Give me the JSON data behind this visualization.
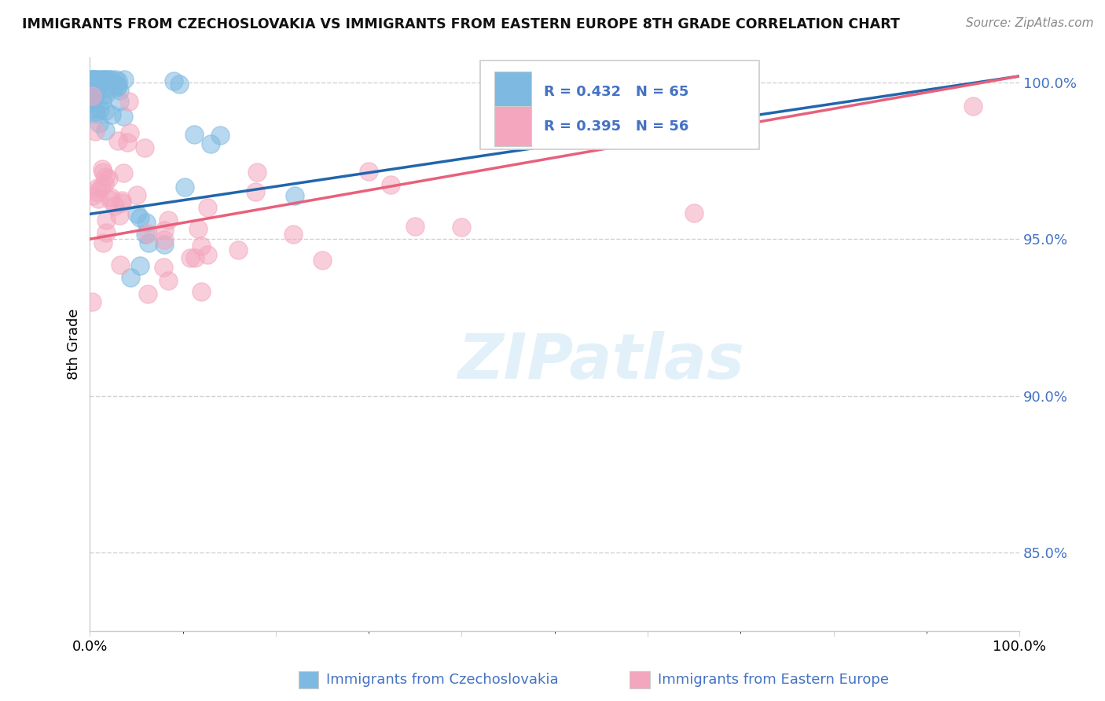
{
  "title": "IMMIGRANTS FROM CZECHOSLOVAKIA VS IMMIGRANTS FROM EASTERN EUROPE 8TH GRADE CORRELATION CHART",
  "source": "Source: ZipAtlas.com",
  "ylabel": "8th Grade",
  "legend_label_1": "Immigrants from Czechoslovakia",
  "legend_label_2": "Immigrants from Eastern Europe",
  "R1": 0.432,
  "N1": 65,
  "R2": 0.395,
  "N2": 56,
  "color1": "#7db9e0",
  "color2": "#f4a6be",
  "trendline1_color": "#2166ac",
  "trendline2_color": "#e8607a",
  "watermark_text": "ZIPatlas",
  "xlim": [
    0.0,
    1.0
  ],
  "ylim": [
    0.825,
    1.008
  ],
  "yticks": [
    0.85,
    0.9,
    0.95,
    1.0
  ],
  "ytick_labels": [
    "85.0%",
    "90.0%",
    "95.0%",
    "100.0%"
  ],
  "blue_line_x": [
    0.0,
    1.0
  ],
  "blue_line_y": [
    0.958,
    1.002
  ],
  "pink_line_x": [
    0.0,
    1.0
  ],
  "pink_line_y": [
    0.95,
    1.002
  ]
}
